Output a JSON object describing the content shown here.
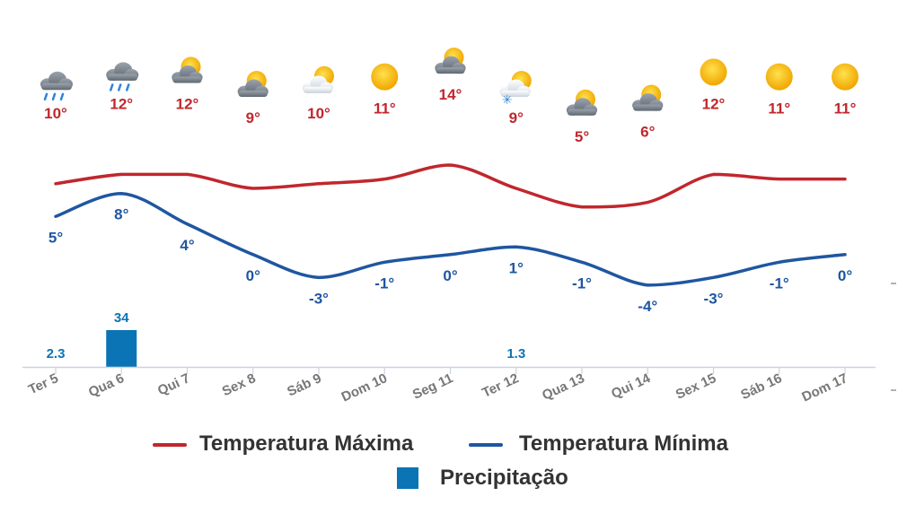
{
  "chart_data": {
    "type": "line",
    "title": "",
    "categories": [
      "Ter 5",
      "Qua 6",
      "Qui 7",
      "Sex 8",
      "Sáb 9",
      "Dom 10",
      "Seg 11",
      "Ter 12",
      "Qua 13",
      "Qui 14",
      "Sex 15",
      "Sáb 16",
      "Dom 17"
    ],
    "weather_icons": [
      "rain-cloud-icon",
      "rain-cloud-icon",
      "partly-cloudy-icon",
      "partly-cloudy-icon",
      "sun-behind-light-cloud-icon",
      "sun-icon",
      "partly-cloudy-icon",
      "snow-sun-cloud-icon",
      "partly-cloudy-icon",
      "partly-cloudy-icon",
      "sun-icon",
      "sun-icon",
      "sun-icon"
    ],
    "series": [
      {
        "name": "Temperatura Máxima",
        "color": "#c0272d",
        "values": [
          10,
          12,
          12,
          9,
          10,
          11,
          14,
          9,
          5,
          6,
          12,
          11,
          11
        ]
      },
      {
        "name": "Temperatura Mínima",
        "color": "#1f56a0",
        "values": [
          5,
          8,
          4,
          0,
          -3,
          -1,
          0,
          1,
          -1,
          -4,
          -3,
          -1,
          0
        ]
      },
      {
        "name": "Precipitação",
        "type": "bar",
        "color": "#0a74b4",
        "values": [
          2.3,
          34,
          null,
          null,
          null,
          null,
          null,
          1.3,
          null,
          null,
          null,
          null,
          null
        ]
      }
    ],
    "grid": false,
    "legend_position": "bottom"
  },
  "legend": {
    "max_label": "Temperatura Máxima",
    "min_label": "Temperatura Mínima",
    "precip_label": "Precipitação"
  }
}
